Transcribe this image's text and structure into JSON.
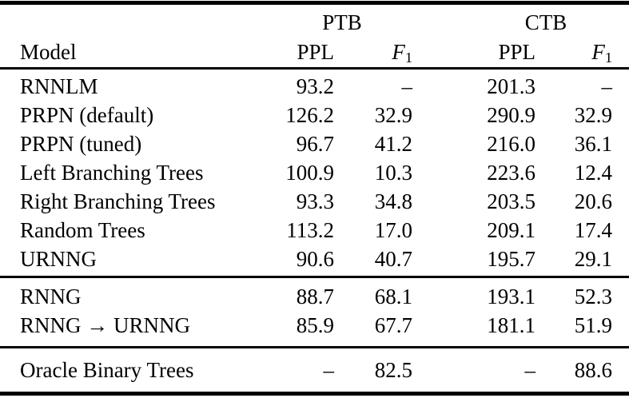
{
  "colors": {
    "background": "#ffffff",
    "text": "#000000",
    "rule": "#000000"
  },
  "table": {
    "header": {
      "model_label": "Model",
      "ptb_group_label": "PTB",
      "ctb_group_label": "CTB",
      "ppl_label": "PPL",
      "f1_base": "F",
      "f1_sub": "1"
    },
    "sections": [
      {
        "rows": [
          {
            "model": "RNNLM",
            "ptb_ppl": "93.2",
            "ptb_f1": "–",
            "ctb_ppl": "201.3",
            "ctb_f1": "–"
          },
          {
            "model": "PRPN (default)",
            "ptb_ppl": "126.2",
            "ptb_f1": "32.9",
            "ctb_ppl": "290.9",
            "ctb_f1": "32.9"
          },
          {
            "model": "PRPN (tuned)",
            "ptb_ppl": "96.7",
            "ptb_f1": "41.2",
            "ctb_ppl": "216.0",
            "ctb_f1": "36.1"
          },
          {
            "model": "Left Branching Trees",
            "ptb_ppl": "100.9",
            "ptb_f1": "10.3",
            "ctb_ppl": "223.6",
            "ctb_f1": "12.4"
          },
          {
            "model": "Right Branching Trees",
            "ptb_ppl": "93.3",
            "ptb_f1": "34.8",
            "ctb_ppl": "203.5",
            "ctb_f1": "20.6"
          },
          {
            "model": "Random Trees",
            "ptb_ppl": "113.2",
            "ptb_f1": "17.0",
            "ctb_ppl": "209.1",
            "ctb_f1": "17.4"
          },
          {
            "model": "URNNG",
            "ptb_ppl": "90.6",
            "ptb_f1": "40.7",
            "ctb_ppl": "195.7",
            "ctb_f1": "29.1"
          }
        ]
      },
      {
        "rows": [
          {
            "model": "RNNG",
            "ptb_ppl": "88.7",
            "ptb_f1": "68.1",
            "ctb_ppl": "193.1",
            "ctb_f1": "52.3"
          },
          {
            "model": "RNNG → URNNG",
            "ptb_ppl": "85.9",
            "ptb_f1": "67.7",
            "ctb_ppl": "181.1",
            "ctb_f1": "51.9"
          }
        ]
      },
      {
        "rows": [
          {
            "model": "Oracle Binary Trees",
            "ptb_ppl": "–",
            "ptb_f1": "82.5",
            "ctb_ppl": "–",
            "ctb_f1": "88.6"
          }
        ]
      }
    ]
  }
}
